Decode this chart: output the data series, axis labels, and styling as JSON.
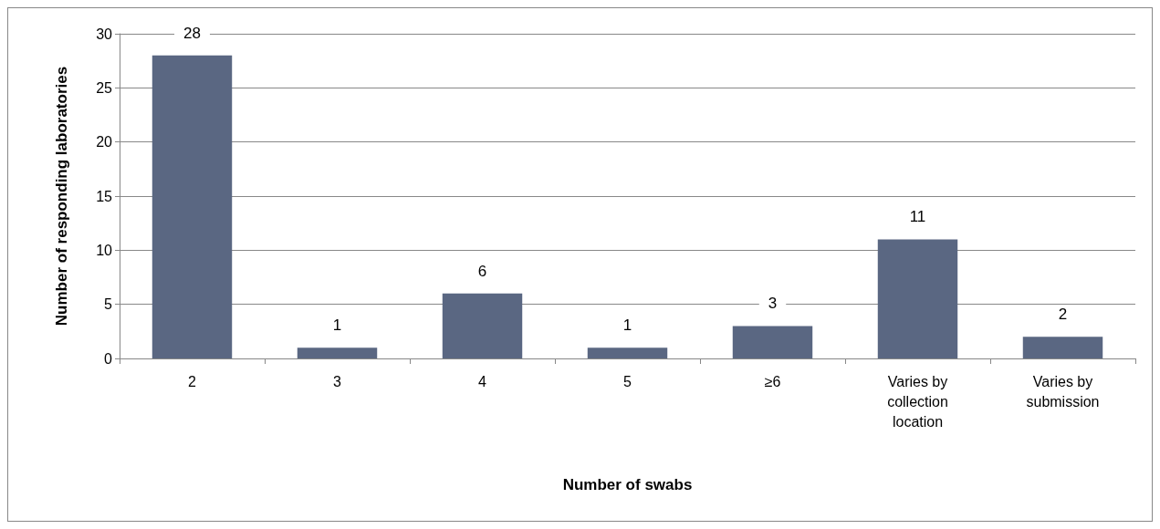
{
  "chart_data": {
    "type": "bar",
    "xlabel": "Number of swabs",
    "ylabel": "Number of responding laboratories",
    "categories": [
      "2",
      "3",
      "4",
      "5",
      "≥6",
      "Varies by\ncollection\nlocation",
      "Varies by\nsubmission"
    ],
    "values": [
      28,
      1,
      6,
      1,
      3,
      11,
      2
    ],
    "color": "#5a6782",
    "ylim": [
      0,
      30
    ],
    "yticks": [
      0,
      5,
      10,
      15,
      20,
      25,
      30
    ],
    "grid": "y",
    "data_labels": true
  }
}
